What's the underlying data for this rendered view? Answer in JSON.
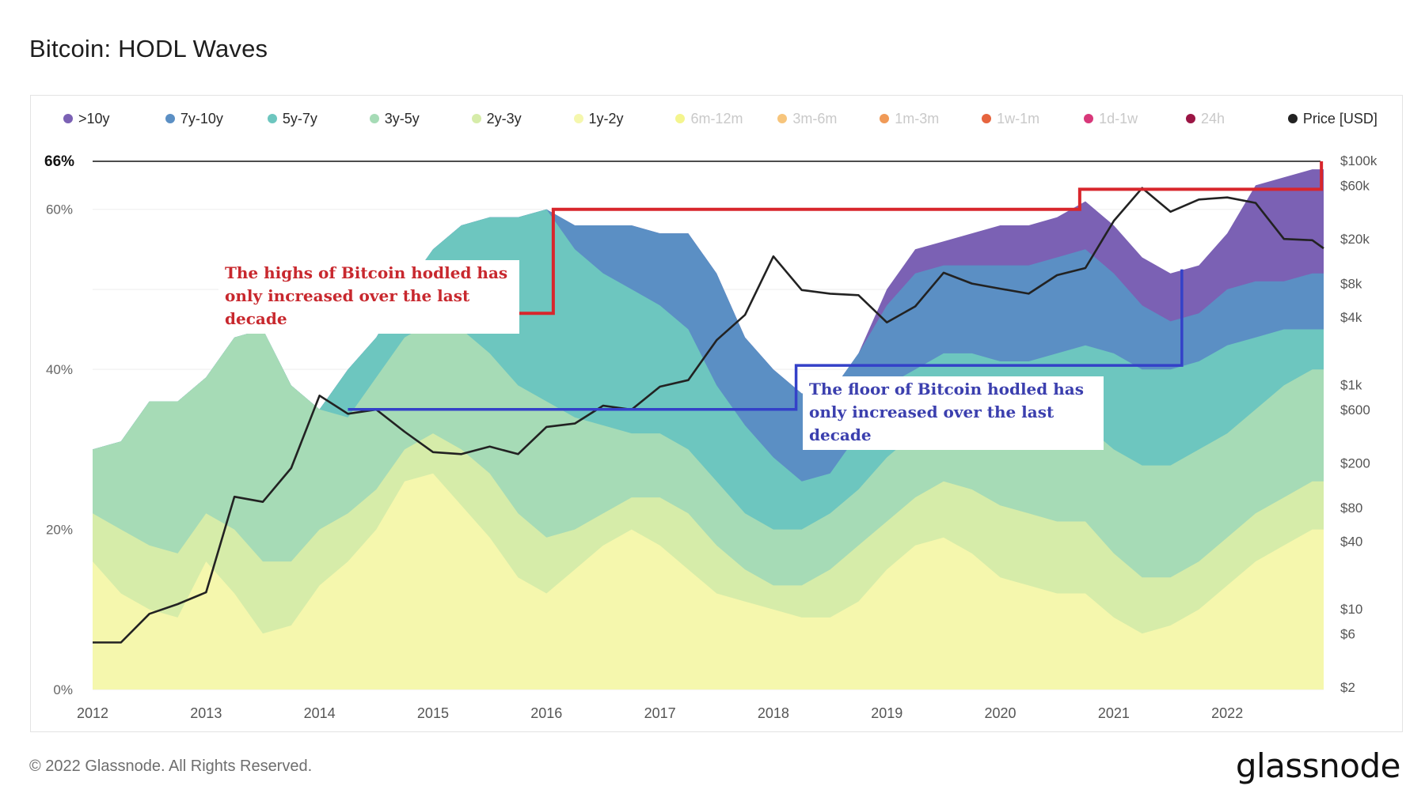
{
  "title": "Bitcoin: HODL Waves",
  "footer": {
    "copyright": "© 2022 Glassnode. All Rights Reserved.",
    "brand": "glassnode"
  },
  "legend": [
    {
      "label": ">10y",
      "color": "#7b61b4",
      "active": true
    },
    {
      "label": "7y-10y",
      "color": "#5b8fc4",
      "active": true
    },
    {
      "label": "5y-7y",
      "color": "#6dc6bf",
      "active": true
    },
    {
      "label": "3y-5y",
      "color": "#a6dbb6",
      "active": true
    },
    {
      "label": "2y-3y",
      "color": "#d6eca9",
      "active": true
    },
    {
      "label": "1y-2y",
      "color": "#f5f7ad",
      "active": true
    },
    {
      "label": "6m-12m",
      "color": "#f4f58e",
      "active": false
    },
    {
      "label": "3m-6m",
      "color": "#f7c57c",
      "active": false
    },
    {
      "label": "1m-3m",
      "color": "#f09a57",
      "active": false
    },
    {
      "label": "1w-1m",
      "color": "#e6643e",
      "active": false
    },
    {
      "label": "1d-1w",
      "color": "#d8387a",
      "active": false
    },
    {
      "label": "24h",
      "color": "#9b1544",
      "active": false
    },
    {
      "label": "Price [USD]",
      "color": "#222222",
      "active": true
    }
  ],
  "annotations": {
    "highs_text": "The highs of Bitcoin hodled has only increased over the last decade",
    "floor_text": "The floor of Bitcoin hodled has only increased over the last decade",
    "reference_label": "66%",
    "reference_value": 66,
    "highs_steps": [
      {
        "from": 2014.0,
        "to": 2016.06,
        "value": 47
      },
      {
        "from": 2016.06,
        "to": 2020.7,
        "value": 60
      },
      {
        "from": 2020.7,
        "to": 2022.83,
        "value": 62.5
      }
    ],
    "floor_steps": [
      {
        "from": 2014.25,
        "to": 2018.2,
        "value": 35
      },
      {
        "from": 2018.2,
        "to": 2021.6,
        "value": 40.5
      }
    ],
    "floor_end_peak": 52.5
  },
  "chart_data": {
    "type": "area",
    "title": "Bitcoin: HODL Waves",
    "xlabel": "",
    "ylabel": "",
    "xlim": [
      2012,
      2022.85
    ],
    "ylim": [
      0,
      66
    ],
    "y_ticks": [
      "0%",
      "20%",
      "40%",
      "60%"
    ],
    "y_tick_values": [
      0,
      20,
      40,
      60
    ],
    "x_ticks": [
      "2012",
      "2013",
      "2014",
      "2015",
      "2016",
      "2017",
      "2018",
      "2019",
      "2020",
      "2021",
      "2022"
    ],
    "y2_scale": "log",
    "y2_ticks": [
      "$2",
      "$6",
      "$10",
      "$40",
      "$80",
      "$200",
      "$600",
      "$1k",
      "$4k",
      "$8k",
      "$20k",
      "$60k",
      "$100k"
    ],
    "y2_tick_values": [
      2,
      6,
      10,
      40,
      80,
      200,
      600,
      1000,
      4000,
      8000,
      20000,
      60000,
      100000
    ],
    "grid": true,
    "legend_position": "top",
    "x": [
      2012.0,
      2012.25,
      2012.5,
      2012.75,
      2013.0,
      2013.25,
      2013.5,
      2013.75,
      2014.0,
      2014.25,
      2014.5,
      2014.75,
      2015.0,
      2015.25,
      2015.5,
      2015.75,
      2016.0,
      2016.25,
      2016.5,
      2016.75,
      2017.0,
      2017.25,
      2017.5,
      2017.75,
      2018.0,
      2018.25,
      2018.5,
      2018.75,
      2019.0,
      2019.25,
      2019.5,
      2019.75,
      2020.0,
      2020.25,
      2020.5,
      2020.75,
      2021.0,
      2021.25,
      2021.5,
      2021.75,
      2022.0,
      2022.25,
      2022.5,
      2022.75,
      2022.85
    ],
    "series": [
      {
        "name": "1y-2y",
        "color": "#f5f7ad",
        "values": [
          16,
          12,
          10,
          9,
          16,
          12,
          7,
          8,
          13,
          16,
          20,
          26,
          27,
          23,
          19,
          14,
          12,
          15,
          18,
          20,
          18,
          15,
          12,
          11,
          10,
          9,
          9,
          11,
          15,
          18,
          19,
          17,
          14,
          13,
          12,
          12,
          9,
          7,
          8,
          10,
          13,
          16,
          18,
          20,
          20
        ]
      },
      {
        "name": "2y-3y",
        "color": "#d6eca9",
        "values": [
          22,
          20,
          18,
          17,
          22,
          20,
          16,
          16,
          20,
          22,
          25,
          30,
          32,
          30,
          27,
          22,
          19,
          20,
          22,
          24,
          24,
          22,
          18,
          15,
          13,
          13,
          15,
          18,
          21,
          24,
          26,
          25,
          23,
          22,
          21,
          21,
          17,
          14,
          14,
          16,
          19,
          22,
          24,
          26,
          26
        ]
      },
      {
        "name": "3y-5y",
        "color": "#a6dbb6",
        "values": [
          30,
          31,
          36,
          36,
          39,
          44,
          45,
          38,
          35,
          34,
          39,
          44,
          46,
          45,
          42,
          38,
          36,
          34,
          33,
          32,
          32,
          30,
          26,
          22,
          20,
          20,
          22,
          25,
          29,
          32,
          34,
          34,
          33,
          32,
          32,
          33,
          30,
          28,
          28,
          30,
          32,
          35,
          38,
          40,
          40
        ]
      },
      {
        "name": "5y-7y",
        "color": "#6dc6bf",
        "values": [
          30,
          31,
          36,
          36,
          39,
          44,
          45,
          38,
          35,
          40,
          44,
          50,
          55,
          58,
          59,
          59,
          60,
          55,
          52,
          50,
          48,
          45,
          38,
          33,
          29,
          26,
          27,
          32,
          38,
          40,
          42,
          42,
          41,
          41,
          42,
          43,
          42,
          40,
          40,
          41,
          43,
          44,
          45,
          45,
          45
        ]
      },
      {
        "name": "7y-10y",
        "color": "#5b8fc4",
        "values": [
          30,
          31,
          36,
          36,
          39,
          44,
          45,
          38,
          35,
          40,
          44,
          50,
          55,
          58,
          59,
          59,
          60,
          58,
          58,
          58,
          57,
          57,
          52,
          44,
          40,
          37,
          37,
          42,
          48,
          52,
          53,
          53,
          53,
          53,
          54,
          55,
          52,
          48,
          46,
          47,
          50,
          51,
          51,
          52,
          52
        ]
      },
      {
        "name": ">10y",
        "color": "#7b61b4",
        "values": [
          30,
          31,
          36,
          36,
          39,
          44,
          45,
          38,
          35,
          40,
          44,
          50,
          55,
          58,
          59,
          59,
          60,
          58,
          58,
          58,
          57,
          57,
          52,
          44,
          40,
          37,
          37,
          42,
          50,
          55,
          56,
          57,
          58,
          58,
          59,
          61,
          58,
          54,
          52,
          53,
          57,
          63,
          64,
          65,
          65
        ]
      },
      {
        "name": "Price [USD]",
        "axis": "y2",
        "color": "#222222",
        "values": [
          5,
          5,
          9,
          11,
          14,
          100,
          90,
          180,
          800,
          550,
          600,
          380,
          250,
          240,
          280,
          240,
          420,
          450,
          650,
          600,
          960,
          1100,
          2500,
          4200,
          14000,
          7000,
          6500,
          6300,
          3600,
          5000,
          10000,
          8000,
          7200,
          6500,
          9500,
          11000,
          29000,
          57000,
          35000,
          45000,
          47000,
          42000,
          20000,
          19500,
          16500
        ]
      }
    ]
  }
}
